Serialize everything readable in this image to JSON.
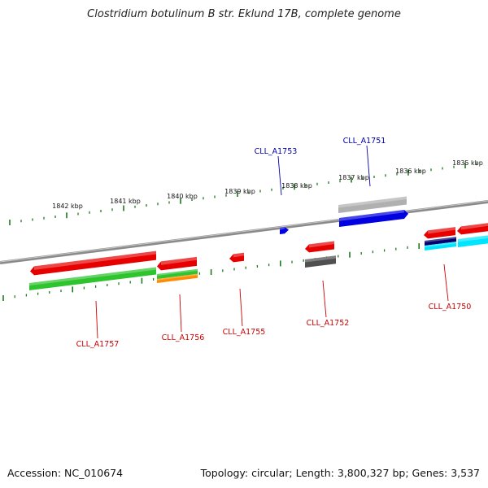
{
  "title": "Clostridium botulinum B str. Eklund 17B, complete genome",
  "footer": {
    "accession": "Accession: NC_010674",
    "summary": "Topology: circular; Length: 3,800,327 bp; Genes: 3,537"
  },
  "colors": {
    "backbone": "#8a8a8a",
    "tick": "#1f7a1f",
    "red": "#e60000",
    "green": "#2ec42e",
    "orange": "#ff8c00",
    "blue": "#0000e0",
    "gray": "#b0b0b0",
    "darkgray": "#505050",
    "navy": "#00006e",
    "cyan": "#00e5ff",
    "label_red": "#cc0000",
    "label_blue": "#0000aa"
  },
  "ticks": [
    {
      "label": "1842 kbp"
    },
    {
      "label": "1841 kbp"
    },
    {
      "label": "1840 kbp"
    },
    {
      "label": "1839 kbp"
    },
    {
      "label": "1838 kbp"
    },
    {
      "label": "1837 kbp"
    },
    {
      "label": "1836 kbp"
    },
    {
      "label": "1835 kbp"
    }
  ],
  "labels": [
    {
      "text": "CLL_A1753",
      "color": "blue"
    },
    {
      "text": "CLL_A1751",
      "color": "blue"
    },
    {
      "text": "CLL_A1757",
      "color": "red"
    },
    {
      "text": "CLL_A1756",
      "color": "red"
    },
    {
      "text": "CLL_A1755",
      "color": "red"
    },
    {
      "text": "CLL_A1752",
      "color": "red"
    },
    {
      "text": "CLL_A1750",
      "color": "red"
    }
  ]
}
